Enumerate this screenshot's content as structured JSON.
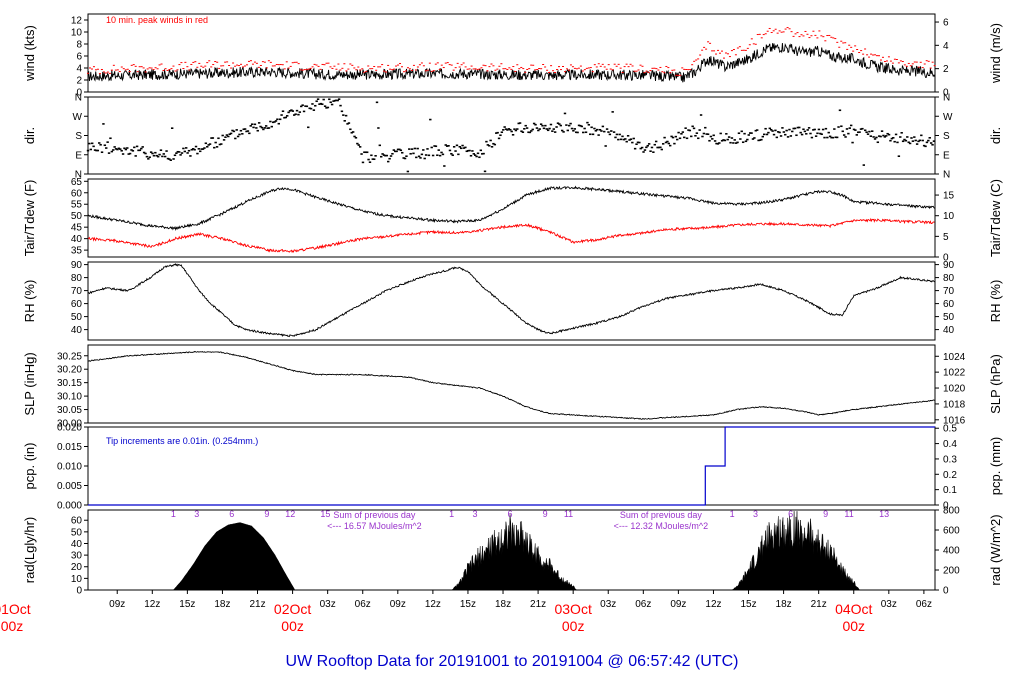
{
  "title": "UW Rooftop Data for 20191001  to  20191004 @ 06:57:42  (UTC)",
  "colors": {
    "axis": "#000000",
    "red": "#ff0000",
    "blue": "#0000cc",
    "purple": "#9933cc",
    "black": "#000000"
  },
  "time_axis": {
    "range_hours": [
      6.5,
      78.95
    ],
    "ticks": [
      {
        "h": 9,
        "label": "09z"
      },
      {
        "h": 12,
        "label": "12z"
      },
      {
        "h": 15,
        "label": "15z"
      },
      {
        "h": 18,
        "label": "18z"
      },
      {
        "h": 21,
        "label": "21z"
      },
      {
        "h": 27,
        "label": "03z"
      },
      {
        "h": 30,
        "label": "06z"
      },
      {
        "h": 33,
        "label": "09z"
      },
      {
        "h": 36,
        "label": "12z"
      },
      {
        "h": 39,
        "label": "15z"
      },
      {
        "h": 42,
        "label": "18z"
      },
      {
        "h": 45,
        "label": "21z"
      },
      {
        "h": 51,
        "label": "03z"
      },
      {
        "h": 54,
        "label": "06z"
      },
      {
        "h": 57,
        "label": "09z"
      },
      {
        "h": 60,
        "label": "12z"
      },
      {
        "h": 63,
        "label": "15z"
      },
      {
        "h": 66,
        "label": "18z"
      },
      {
        "h": 69,
        "label": "21z"
      },
      {
        "h": 75,
        "label": "03z"
      },
      {
        "h": 78,
        "label": "06z"
      }
    ],
    "day_marks": [
      {
        "h": 0,
        "date": "01Oct",
        "time": "00z"
      },
      {
        "h": 24,
        "date": "02Oct",
        "time": "00z"
      },
      {
        "h": 48,
        "date": "03Oct",
        "time": "00z"
      },
      {
        "h": 72,
        "date": "04Oct",
        "time": "00z"
      }
    ]
  },
  "chart_data": [
    {
      "type": "line",
      "id": "wind",
      "ylabel": "wind (kts)",
      "ylabel_right": "wind (m/s)",
      "ylim": [
        0,
        13
      ],
      "ticks": [
        0,
        2,
        4,
        6,
        8,
        10,
        12
      ],
      "right_ticks": [
        {
          "v": 0,
          "label": "0"
        },
        {
          "v": 3.89,
          "label": "2"
        },
        {
          "v": 7.78,
          "label": "4"
        },
        {
          "v": 11.66,
          "label": "6"
        }
      ],
      "annotation": "10 min. peak winds in red",
      "series": [
        {
          "name": "wind speed",
          "color": "#000000",
          "x": [
            6.5,
            10,
            14,
            18,
            22,
            26,
            30,
            34,
            38,
            42,
            46,
            50,
            54,
            57.5,
            58.5,
            59.5,
            61,
            63,
            64.5,
            66,
            67.5,
            69,
            70.5,
            72,
            74,
            76,
            78.95
          ],
          "values": [
            2.6,
            2.8,
            3.0,
            3.2,
            3.4,
            3.0,
            2.9,
            3.0,
            3.1,
            2.9,
            2.8,
            2.9,
            2.8,
            2.4,
            3.5,
            5.5,
            4.2,
            5.5,
            7.2,
            7.6,
            6.6,
            6.8,
            5.8,
            5.5,
            4.2,
            3.6,
            3.2
          ]
        },
        {
          "name": "10 min. peak winds",
          "color": "#ff0000",
          "x": [
            6.5,
            10,
            14,
            18,
            22,
            26,
            30,
            34,
            38,
            42,
            46,
            50,
            54,
            57.5,
            58.5,
            59.5,
            61,
            63,
            64.5,
            66,
            67.5,
            69,
            70.5,
            72,
            74,
            76,
            78.95
          ],
          "values": [
            3.6,
            3.9,
            4.2,
            4.6,
            4.6,
            4.2,
            4.0,
            4.1,
            4.2,
            4.0,
            3.9,
            4.0,
            3.9,
            3.3,
            4.8,
            7.8,
            6.0,
            7.8,
            9.9,
            10.6,
            9.5,
            9.6,
            8.2,
            7.5,
            5.8,
            5.0,
            4.4
          ]
        }
      ]
    },
    {
      "type": "scatter",
      "id": "dir",
      "ylabel": "dir.",
      "ylabel_right": "dir.",
      "ylim": [
        0,
        360
      ],
      "labels": [
        {
          "v": 0,
          "label": "N"
        },
        {
          "v": 90,
          "label": "E"
        },
        {
          "v": 180,
          "label": "S"
        },
        {
          "v": 270,
          "label": "W"
        },
        {
          "v": 360,
          "label": "N"
        }
      ],
      "series": [
        {
          "name": "wind direction",
          "color": "#000000",
          "x": [
            6.5,
            9,
            12,
            14,
            16,
            18,
            20,
            22,
            24,
            26,
            28,
            30,
            32,
            34,
            36,
            38,
            40,
            42,
            44,
            46,
            48,
            50,
            52,
            54,
            56,
            58,
            60,
            62,
            64,
            66,
            68,
            70,
            72,
            74,
            76,
            78.95
          ],
          "values": [
            130,
            120,
            95,
            88,
            120,
            160,
            210,
            240,
            290,
            320,
            330,
            80,
            85,
            90,
            105,
            115,
            95,
            200,
            215,
            220,
            220,
            210,
            180,
            110,
            150,
            200,
            160,
            170,
            185,
            190,
            195,
            190,
            205,
            175,
            170,
            150
          ]
        }
      ]
    },
    {
      "type": "line",
      "id": "temp",
      "ylabel": "Tair/Tdew (F)",
      "ylabel_right": "Tair/Tdew (C)",
      "ylim": [
        32,
        66
      ],
      "ticks": [
        35,
        40,
        45,
        50,
        55,
        60,
        65
      ],
      "right_ticks": [
        {
          "v": 32,
          "label": "0"
        },
        {
          "v": 41,
          "label": "5"
        },
        {
          "v": 50,
          "label": "10"
        },
        {
          "v": 59,
          "label": "15"
        }
      ],
      "series": [
        {
          "name": "Tair",
          "color": "#000000",
          "x": [
            6.5,
            9,
            12,
            14,
            16,
            18,
            20,
            22,
            23,
            24,
            26,
            28,
            30,
            32,
            34,
            36,
            38,
            40,
            42,
            44,
            46,
            48,
            50,
            52,
            54,
            56,
            58,
            60,
            62,
            64,
            66,
            68,
            69,
            70,
            71,
            72,
            74,
            76,
            78.95
          ],
          "values": [
            50,
            48,
            45.5,
            44.5,
            46.5,
            51,
            56,
            60.5,
            62,
            61.5,
            58,
            55,
            52,
            50,
            49,
            48,
            47.5,
            48,
            53,
            59,
            62,
            62.3,
            61.5,
            60.5,
            59.5,
            58.5,
            57.5,
            55.5,
            55,
            55.5,
            57,
            59.5,
            60.5,
            60.5,
            59,
            56,
            55.5,
            54.5,
            53.5
          ]
        },
        {
          "name": "Tdew",
          "color": "#ff0000",
          "x": [
            6.5,
            9,
            12,
            14,
            16,
            18,
            20,
            22,
            24,
            26,
            28,
            30,
            32,
            34,
            36,
            38,
            40,
            42,
            44,
            46,
            48,
            50,
            52,
            54,
            56,
            58,
            60,
            62,
            64,
            66,
            68,
            70,
            72,
            74,
            76,
            78.95
          ],
          "values": [
            40,
            39,
            36.5,
            40,
            42,
            40,
            37,
            35,
            34.5,
            36,
            38,
            40,
            41,
            42,
            43,
            42.5,
            43.5,
            45,
            46,
            43,
            38.5,
            39.5,
            41.5,
            42.5,
            44,
            44.5,
            45,
            46,
            46.5,
            46.5,
            46,
            45.5,
            48,
            48,
            47.5,
            47
          ]
        }
      ]
    },
    {
      "type": "line",
      "id": "rh",
      "ylabel": "RH (%)",
      "ylabel_right": "RH (%)",
      "ylim": [
        32,
        92
      ],
      "ticks": [
        40,
        50,
        60,
        70,
        80,
        90
      ],
      "right_ticks": [
        {
          "v": 40,
          "label": "40"
        },
        {
          "v": 50,
          "label": "50"
        },
        {
          "v": 60,
          "label": "60"
        },
        {
          "v": 70,
          "label": "70"
        },
        {
          "v": 80,
          "label": "80"
        },
        {
          "v": 90,
          "label": "90"
        }
      ],
      "series": [
        {
          "name": "relative humidity",
          "color": "#000000",
          "x": [
            6.5,
            8,
            10,
            12,
            13,
            14,
            14.5,
            15,
            16,
            17,
            18,
            19,
            20,
            22,
            24,
            26,
            28,
            30,
            32,
            34,
            36,
            37,
            38,
            39,
            40,
            42,
            44,
            45,
            46,
            48,
            50,
            52,
            54,
            56,
            58,
            60,
            62,
            64,
            66,
            68,
            69,
            70,
            71,
            72,
            74,
            76,
            78.95
          ],
          "values": [
            68,
            72,
            70,
            81,
            88,
            90,
            89,
            83,
            70,
            60,
            52,
            44,
            40,
            37,
            35,
            40,
            50,
            60,
            70,
            77,
            83,
            85,
            88,
            85,
            75,
            60,
            45,
            40,
            37,
            41,
            45,
            50,
            58,
            64,
            67,
            70,
            72,
            75,
            70,
            62,
            57,
            52,
            51,
            66,
            72,
            80,
            77
          ]
        }
      ]
    },
    {
      "type": "line",
      "id": "slp",
      "ylabel": "SLP (inHg)",
      "ylabel_right": "SLP (hPa)",
      "ylim": [
        30.0,
        30.29
      ],
      "ticks": [
        30.0,
        30.05,
        30.1,
        30.15,
        30.2,
        30.25
      ],
      "tick_labels": [
        "30.00",
        "30.05",
        "30.10",
        "30.15",
        "30.20",
        "30.25"
      ],
      "right_ticks": [
        {
          "v": 30.0119,
          "label": "1016"
        },
        {
          "v": 30.0709,
          "label": "1018"
        },
        {
          "v": 30.13,
          "label": "1020"
        },
        {
          "v": 30.1891,
          "label": "1022"
        },
        {
          "v": 30.2481,
          "label": "1024"
        }
      ],
      "series": [
        {
          "name": "sea level pressure",
          "color": "#000000",
          "x": [
            6.5,
            10,
            14,
            16,
            18,
            20,
            22,
            24,
            26,
            30,
            34,
            36,
            38,
            40,
            42,
            44,
            46,
            48,
            50,
            52,
            54,
            56,
            58,
            60,
            62,
            64,
            66,
            68,
            69,
            70,
            72,
            74,
            76,
            78.95
          ],
          "values": [
            30.23,
            30.25,
            30.26,
            30.265,
            30.262,
            30.245,
            30.22,
            30.195,
            30.18,
            30.18,
            30.17,
            30.15,
            30.14,
            30.13,
            30.1,
            30.06,
            30.035,
            30.03,
            30.025,
            30.02,
            30.015,
            30.02,
            30.025,
            30.03,
            30.05,
            30.06,
            30.055,
            30.04,
            30.03,
            30.035,
            30.05,
            30.06,
            30.07,
            30.085
          ]
        }
      ]
    },
    {
      "type": "line",
      "id": "pcp",
      "ylabel": "pcp. (in)",
      "ylabel_right": "pcp. (mm)",
      "ylim": [
        0,
        0.02
      ],
      "ticks": [
        0,
        0.005,
        0.01,
        0.015,
        0.02
      ],
      "tick_labels": [
        "0.000",
        "0.005",
        "0.010",
        "0.015",
        "0.020"
      ],
      "right_ticks": [
        {
          "v": 0,
          "label": "0"
        },
        {
          "v": 0.003937,
          "label": "0.1"
        },
        {
          "v": 0.007874,
          "label": "0.2"
        },
        {
          "v": 0.011811,
          "label": "0.3"
        },
        {
          "v": 0.015748,
          "label": "0.4"
        },
        {
          "v": 0.019685,
          "label": "0.5"
        }
      ],
      "annotation": "Tip increments are 0.01in. (0.254mm.)",
      "series": [
        {
          "name": "cumulative precipitation",
          "color": "#0000cc",
          "step": true,
          "x": [
            6.5,
            59.3,
            59.3,
            61.0,
            61.0,
            78.95
          ],
          "values": [
            0,
            0,
            0.01,
            0.01,
            0.02,
            0.02
          ]
        }
      ]
    },
    {
      "type": "area",
      "id": "rad",
      "ylabel": "rad(Lgly/hr)",
      "ylabel_right": "rad (W/m^2)",
      "ylim": [
        0,
        68.8
      ],
      "ticks": [
        0,
        10,
        20,
        30,
        40,
        50,
        60
      ],
      "right_ticks": [
        {
          "v": 0,
          "label": "0"
        },
        {
          "v": 17.2,
          "label": "200"
        },
        {
          "v": 34.4,
          "label": "400"
        },
        {
          "v": 51.6,
          "label": "600"
        },
        {
          "v": 68.8,
          "label": "800"
        }
      ],
      "series": [
        {
          "name": "solar radiation",
          "color": "#000000",
          "x": [
            6.5,
            13.8,
            14.5,
            15.5,
            16.5,
            17.5,
            18.5,
            19.5,
            20.5,
            21.5,
            22.5,
            23.5,
            24.2,
            37.6,
            38.2,
            39,
            40,
            41,
            42,
            42.5,
            43,
            43.5,
            44,
            44.5,
            45,
            46,
            47,
            48,
            48.3,
            61.6,
            62.2,
            63,
            64,
            65,
            66,
            67,
            67.5,
            68,
            69,
            70,
            71,
            72,
            72.5,
            78.95
          ],
          "values": [
            0,
            0,
            8,
            22,
            38,
            50,
            56,
            58,
            55,
            45,
            30,
            12,
            0,
            0,
            6,
            22,
            35,
            45,
            55,
            62,
            52,
            60,
            50,
            42,
            35,
            25,
            12,
            4,
            0,
            0,
            6,
            20,
            40,
            58,
            62,
            66,
            55,
            60,
            48,
            40,
            20,
            8,
            0,
            0
          ]
        }
      ],
      "hour_labels": [
        {
          "h": 13.8,
          "label": "1"
        },
        {
          "h": 15.8,
          "label": "3"
        },
        {
          "h": 18.8,
          "label": "6"
        },
        {
          "h": 21.8,
          "label": "9"
        },
        {
          "h": 23.8,
          "label": "12"
        },
        {
          "h": 26.8,
          "label": "15"
        },
        {
          "h": 37.6,
          "label": "1"
        },
        {
          "h": 39.6,
          "label": "3"
        },
        {
          "h": 42.6,
          "label": "6"
        },
        {
          "h": 45.6,
          "label": "9"
        },
        {
          "h": 47.6,
          "label": "11"
        },
        {
          "h": 61.6,
          "label": "1"
        },
        {
          "h": 63.6,
          "label": "3"
        },
        {
          "h": 66.6,
          "label": "6"
        },
        {
          "h": 69.6,
          "label": "9"
        },
        {
          "h": 71.6,
          "label": "11"
        },
        {
          "h": 74.6,
          "label": "13"
        }
      ],
      "sums": [
        {
          "h": 31,
          "line1": "Sum of previous day",
          "line2": "<--- 16.57 MJoules/m^2"
        },
        {
          "h": 55.5,
          "line1": "Sum of previous day",
          "line2": "<--- 12.32 MJoules/m^2"
        }
      ]
    }
  ]
}
